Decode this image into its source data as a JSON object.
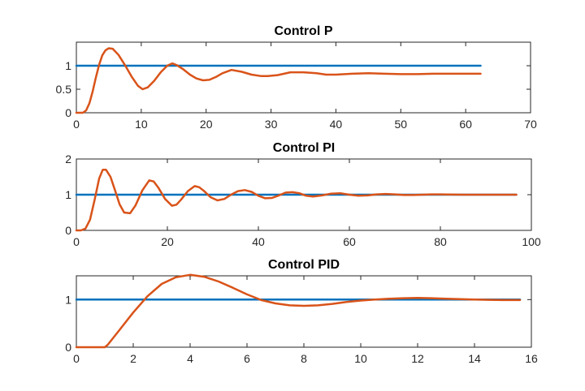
{
  "chart_data": [
    {
      "type": "line",
      "title": "Control P",
      "xlabel": "",
      "ylabel": "",
      "xlim": [
        0,
        70
      ],
      "ylim": [
        0,
        1.5
      ],
      "xticks": [
        0,
        10,
        20,
        30,
        40,
        50,
        60,
        70
      ],
      "yticks": [
        0,
        0.5,
        1
      ],
      "grid": false,
      "series": [
        {
          "color": "#0072BD",
          "x": [
            0,
            62.3
          ],
          "y": [
            1,
            1
          ]
        },
        {
          "color": "#D95319",
          "x": [
            0,
            1,
            1.5,
            2,
            2.5,
            3,
            3.5,
            4,
            4.5,
            5,
            5.6,
            6.5,
            7.5,
            8.5,
            9.5,
            10.2,
            11,
            12,
            13,
            14,
            14.8,
            15.5,
            16.5,
            17.5,
            18.5,
            19.5,
            20.5,
            21.5,
            22.5,
            23.9,
            25.5,
            27,
            28.5,
            29.5,
            31,
            33,
            35,
            37,
            38.5,
            40,
            42.5,
            45,
            47.5,
            50,
            52.5,
            55,
            57.5,
            60,
            62.3
          ],
          "y": [
            0,
            0,
            0.05,
            0.2,
            0.45,
            0.75,
            1.02,
            1.22,
            1.33,
            1.37,
            1.36,
            1.23,
            1.01,
            0.77,
            0.57,
            0.5,
            0.54,
            0.68,
            0.86,
            1.0,
            1.05,
            1.01,
            0.92,
            0.81,
            0.73,
            0.69,
            0.7,
            0.76,
            0.84,
            0.91,
            0.87,
            0.81,
            0.78,
            0.78,
            0.8,
            0.86,
            0.86,
            0.84,
            0.81,
            0.81,
            0.83,
            0.84,
            0.83,
            0.82,
            0.82,
            0.83,
            0.83,
            0.83,
            0.83
          ]
        }
      ]
    },
    {
      "type": "line",
      "title": "Control PI",
      "xlabel": "",
      "ylabel": "",
      "xlim": [
        0,
        100
      ],
      "ylim": [
        0,
        2
      ],
      "xticks": [
        0,
        20,
        40,
        60,
        80,
        100
      ],
      "yticks": [
        0,
        1,
        2
      ],
      "grid": false,
      "series": [
        {
          "color": "#0072BD",
          "x": [
            0,
            96.7
          ],
          "y": [
            1,
            1
          ]
        },
        {
          "color": "#D95319",
          "x": [
            0,
            1,
            2,
            3,
            4,
            5,
            5.8,
            6.5,
            7.5,
            8.5,
            9.5,
            10.5,
            11.8,
            13,
            14.5,
            16,
            17,
            18,
            19.5,
            21,
            22,
            23,
            24.5,
            26,
            27,
            28,
            29.5,
            31,
            32.5,
            34,
            35.5,
            37,
            38.5,
            40,
            41.5,
            43,
            44.5,
            46,
            47.5,
            49,
            50.5,
            52,
            54,
            56,
            58,
            60,
            62,
            64,
            66,
            68,
            70,
            72,
            74,
            76,
            78,
            80,
            85,
            90,
            96.7
          ],
          "y": [
            0,
            0,
            0.05,
            0.3,
            0.85,
            1.45,
            1.7,
            1.7,
            1.5,
            1.12,
            0.73,
            0.5,
            0.48,
            0.7,
            1.12,
            1.4,
            1.37,
            1.2,
            0.88,
            0.69,
            0.72,
            0.86,
            1.1,
            1.24,
            1.21,
            1.11,
            0.93,
            0.84,
            0.88,
            1.0,
            1.1,
            1.13,
            1.08,
            0.97,
            0.9,
            0.91,
            0.98,
            1.06,
            1.07,
            1.04,
            0.97,
            0.95,
            0.98,
            1.03,
            1.04,
            1.0,
            0.97,
            0.98,
            1.01,
            1.02,
            1.01,
            0.99,
            0.99,
            1.0,
            1.01,
            1.01,
            1.0,
            1.0,
            1.0
          ]
        }
      ]
    },
    {
      "type": "line",
      "title": "Control PID",
      "xlabel": "",
      "ylabel": "",
      "xlim": [
        0,
        16
      ],
      "ylim": [
        0,
        1.5
      ],
      "xticks": [
        0,
        2,
        4,
        6,
        8,
        10,
        12,
        14,
        16
      ],
      "yticks": [
        0,
        1
      ],
      "grid": false,
      "series": [
        {
          "color": "#0072BD",
          "x": [
            0,
            15.6
          ],
          "y": [
            1,
            1
          ]
        },
        {
          "color": "#D95319",
          "x": [
            0,
            1,
            1.1,
            1.5,
            2,
            2.5,
            3,
            3.5,
            4,
            4.5,
            5,
            5.5,
            6,
            6.5,
            7,
            7.5,
            8,
            8.5,
            9,
            9.5,
            10,
            10.5,
            11,
            11.5,
            12,
            12.5,
            13,
            13.5,
            14,
            14.5,
            15,
            15.6
          ],
          "y": [
            0,
            0,
            0.05,
            0.35,
            0.73,
            1.07,
            1.33,
            1.47,
            1.52,
            1.48,
            1.38,
            1.25,
            1.11,
            0.99,
            0.92,
            0.88,
            0.87,
            0.88,
            0.91,
            0.95,
            0.98,
            1.0,
            1.02,
            1.03,
            1.035,
            1.03,
            1.02,
            1.01,
            1.0,
            0.995,
            0.99,
            0.99
          ]
        }
      ]
    }
  ]
}
